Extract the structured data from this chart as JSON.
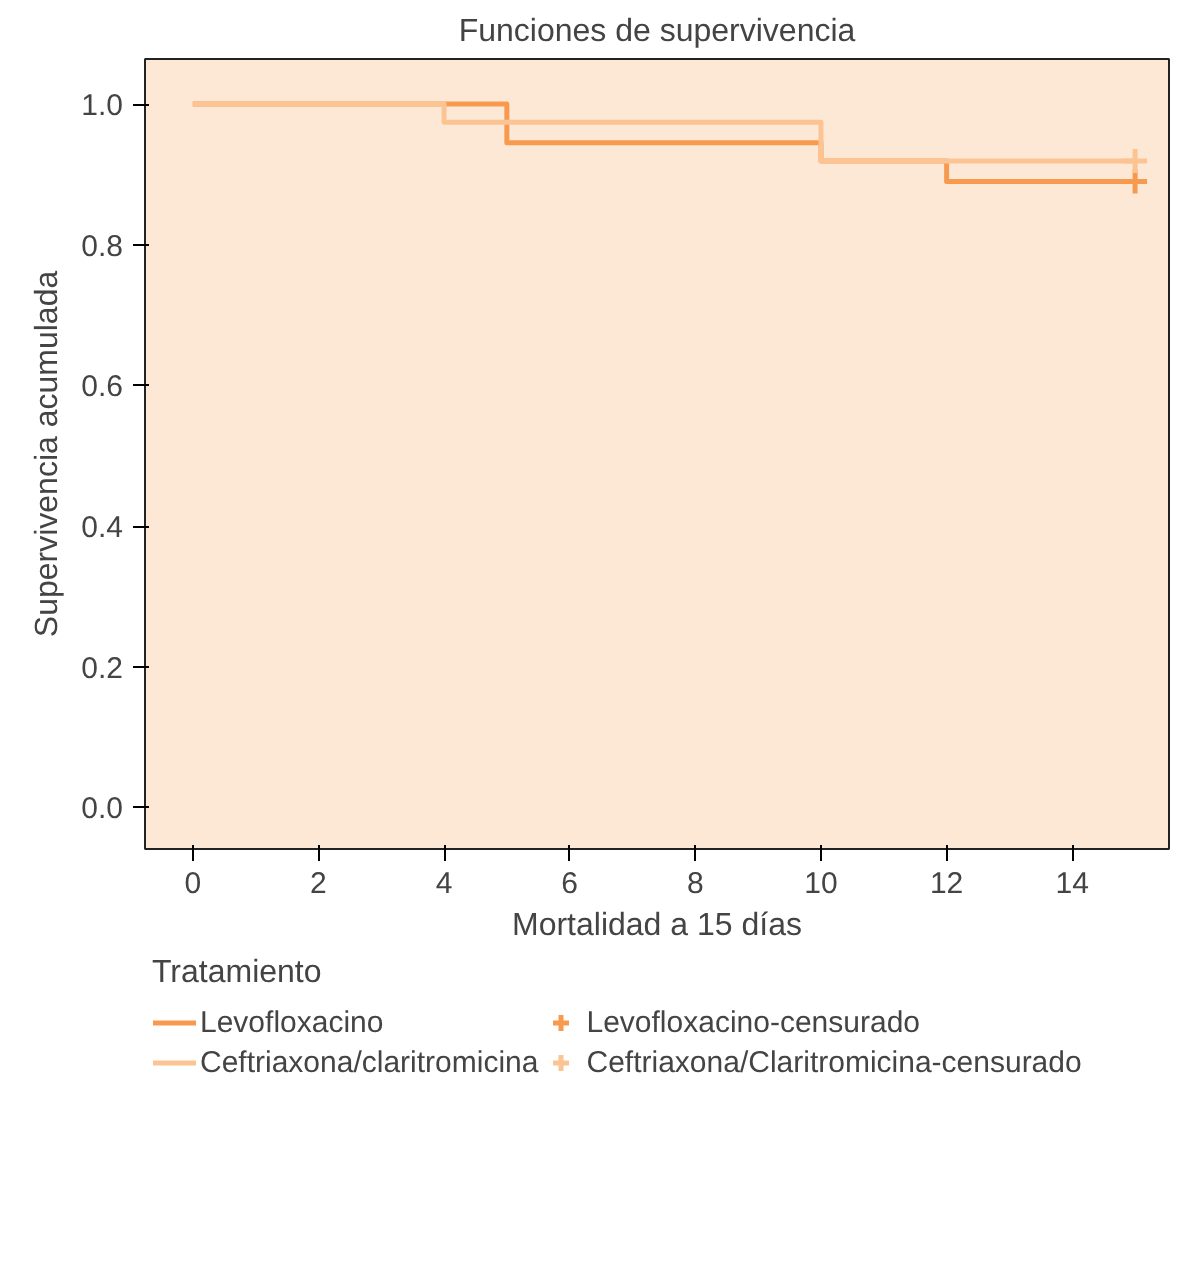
{
  "chart_data": {
    "type": "step",
    "title": "Funciones de supervivencia",
    "xlabel": "Mortalidad a 15 días",
    "ylabel": "Supervivencia acumulada",
    "legend_title": "Tratamiento",
    "xlim": [
      -0.76,
      15.54
    ],
    "ylim": [
      -0.059,
      1.064
    ],
    "xticks": [
      0,
      2,
      4,
      6,
      8,
      10,
      12,
      14
    ],
    "yticks": [
      {
        "value": 0,
        "label": "0.0"
      },
      {
        "value": 0.2,
        "label": "0.2"
      },
      {
        "value": 0.4,
        "label": "0.4"
      },
      {
        "value": 0.6,
        "label": "0.6"
      },
      {
        "value": 0.8,
        "label": "0.8"
      },
      {
        "value": 1,
        "label": "1.0"
      }
    ],
    "grid": false,
    "legend": "bottom",
    "series": [
      {
        "name": "Levofloxacino",
        "color": "#f79a50",
        "x": [
          0,
          5,
          10,
          12,
          15
        ],
        "values": [
          1.0,
          0.945,
          0.919,
          0.89,
          0.89
        ]
      },
      {
        "name": "Ceftriaxona/claritromicina",
        "color": "#fcc493",
        "x": [
          0,
          4,
          10,
          15
        ],
        "values": [
          1.0,
          0.974,
          0.919,
          0.919
        ]
      },
      {
        "name": "Levofloxacino-censurado",
        "type": "scatter",
        "marker": "cross",
        "color": "#f79a50",
        "x": [
          15
        ],
        "values": [
          0.89
        ]
      },
      {
        "name": "Ceftriaxona/Claritromicina-censurado",
        "type": "scatter",
        "marker": "cross",
        "color": "#fcc493",
        "x": [
          15
        ],
        "values": [
          0.919
        ]
      }
    ]
  }
}
